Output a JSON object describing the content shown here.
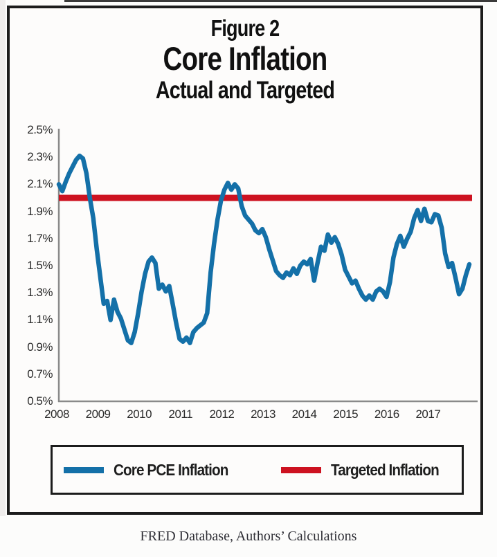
{
  "figure": {
    "label": "Figure 2",
    "title": "Core Inflation",
    "subtitle": "Actual and Targeted"
  },
  "legend": {
    "core_pce_label": "Core PCE Inflation",
    "targeted_label": "Targeted Inflation"
  },
  "caption": "FRED Database, Authors’ Calculations",
  "colors": {
    "core_pce_blue": "#1470a8",
    "target_red": "#cd1220",
    "frame_black": "#1c1c1c",
    "axis_gray": "#8a8a8a"
  },
  "chart_data": {
    "type": "line",
    "title": "Core Inflation — Actual and Targeted",
    "xlabel": "",
    "ylabel": "",
    "ylim": [
      0.5,
      2.5
    ],
    "grid": false,
    "legend_position": "bottom-box",
    "frequency": "monthly",
    "x_start": "2008-01",
    "x_end": "2017-12",
    "x_ticks": [
      "2008",
      "2009",
      "2010",
      "2011",
      "2012",
      "2013",
      "2014",
      "2015",
      "2016",
      "2017"
    ],
    "y_ticks": [
      "2.5%",
      "2.3%",
      "2.1%",
      "1.9%",
      "1.7%",
      "1.5%",
      "1.3%",
      "1.1%",
      "0.9%",
      "0.7%",
      "0.5%"
    ],
    "target_value": 2.0,
    "series": [
      {
        "name": "Core PCE Inflation",
        "color": "#1470a8",
        "values": [
          2.1,
          2.05,
          2.12,
          2.18,
          2.23,
          2.28,
          2.31,
          2.29,
          2.18,
          2.0,
          1.85,
          1.62,
          1.42,
          1.22,
          1.24,
          1.1,
          1.25,
          1.16,
          1.11,
          1.03,
          0.95,
          0.93,
          1.01,
          1.15,
          1.31,
          1.44,
          1.53,
          1.56,
          1.52,
          1.33,
          1.36,
          1.31,
          1.35,
          1.22,
          1.08,
          0.96,
          0.94,
          0.97,
          0.93,
          1.01,
          1.04,
          1.06,
          1.08,
          1.15,
          1.45,
          1.66,
          1.84,
          1.98,
          2.06,
          2.11,
          2.06,
          2.1,
          2.07,
          1.94,
          1.87,
          1.84,
          1.81,
          1.76,
          1.74,
          1.77,
          1.71,
          1.62,
          1.54,
          1.46,
          1.43,
          1.41,
          1.45,
          1.43,
          1.48,
          1.44,
          1.5,
          1.53,
          1.51,
          1.55,
          1.39,
          1.52,
          1.64,
          1.61,
          1.73,
          1.67,
          1.71,
          1.66,
          1.58,
          1.47,
          1.42,
          1.37,
          1.39,
          1.33,
          1.28,
          1.25,
          1.28,
          1.25,
          1.31,
          1.33,
          1.31,
          1.27,
          1.38,
          1.56,
          1.66,
          1.72,
          1.64,
          1.7,
          1.75,
          1.85,
          1.91,
          1.83,
          1.92,
          1.83,
          1.82,
          1.88,
          1.87,
          1.78,
          1.59,
          1.49,
          1.52,
          1.41,
          1.29,
          1.33,
          1.43,
          1.51
        ]
      },
      {
        "name": "Targeted Inflation",
        "color": "#cd1220",
        "constant": 2.0
      }
    ]
  }
}
